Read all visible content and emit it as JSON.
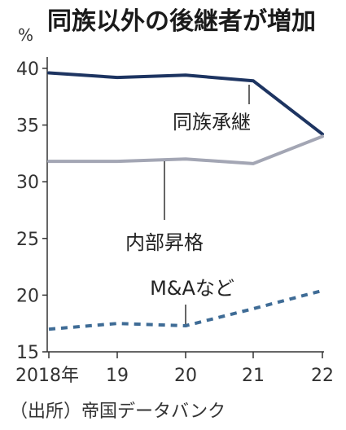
{
  "chart_data": {
    "type": "line",
    "title": "同族以外の後継者が増加",
    "unit": "%",
    "categories": [
      "2018年",
      "19",
      "20",
      "21",
      "22"
    ],
    "ylim": [
      15,
      41
    ],
    "yticks": [
      15,
      20,
      25,
      30,
      35,
      40
    ],
    "grid": false,
    "series": [
      {
        "name": "同族承継",
        "values": [
          39.6,
          39.2,
          39.4,
          38.9,
          34.2
        ],
        "color": "#1d3461",
        "style": "solid"
      },
      {
        "name": "内部昇格",
        "values": [
          31.8,
          31.8,
          32.0,
          31.6,
          34.0
        ],
        "color": "#a3a6b4",
        "style": "solid"
      },
      {
        "name": "M&Aなど",
        "values": [
          17.0,
          17.5,
          17.3,
          18.8,
          20.4
        ],
        "color": "#3f6c96",
        "style": "dashed"
      }
    ],
    "source": "（出所）帝国データバンク"
  }
}
